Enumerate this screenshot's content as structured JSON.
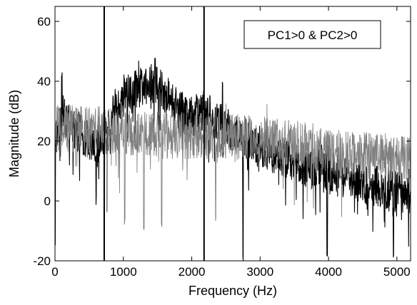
{
  "chart_data": {
    "type": "line",
    "xlabel": "Frequency (Hz)",
    "ylabel": "Magnitude (dB)",
    "xlim": [
      0,
      5200
    ],
    "ylim": [
      -20,
      65
    ],
    "xticks": [
      0,
      1000,
      2000,
      3000,
      4000,
      5000
    ],
    "yticks": [
      -20,
      0,
      20,
      40,
      60
    ],
    "xtick_labels": [
      "0",
      "1000",
      "2000",
      "3000",
      "4000",
      "5000"
    ],
    "ytick_labels": [
      "-20",
      "0",
      "20",
      "40",
      "60"
    ],
    "annotation": "PC1>0 & PC2>0",
    "vertical_lines": [
      720,
      2180
    ],
    "grid": false,
    "series": [
      {
        "color": "#000000",
        "envelope_x": [
          0,
          100,
          200,
          400,
          600,
          720,
          900,
          1100,
          1300,
          1450,
          1600,
          1800,
          2000,
          2180,
          2400,
          2700,
          3000,
          3300,
          3600,
          3900,
          4200,
          4500,
          4800,
          5200
        ],
        "envelope_mean": [
          20,
          30,
          26,
          22,
          18,
          20,
          32,
          36,
          38,
          40,
          36,
          30,
          28,
          30,
          26,
          22,
          18,
          15,
          12,
          10,
          8,
          6,
          4,
          2
        ],
        "spread": 7,
        "peaks": [
          {
            "x": 100,
            "y": 43
          },
          {
            "x": 1180,
            "y": 44
          },
          {
            "x": 1465,
            "y": 49
          },
          {
            "x": 2450,
            "y": 41
          }
        ],
        "dips": [
          {
            "x": 0,
            "y": -15
          },
          {
            "x": 2750,
            "y": -20
          },
          {
            "x": 3980,
            "y": -20
          },
          {
            "x": 4950,
            "y": -20
          }
        ]
      },
      {
        "color": "#808080",
        "envelope_x": [
          0,
          500,
          1000,
          1500,
          2000,
          2500,
          3000,
          3500,
          4000,
          4500,
          5200
        ],
        "envelope_mean": [
          24,
          24,
          23,
          22,
          22,
          22,
          21,
          19,
          17,
          15,
          14
        ],
        "spread": 8,
        "dips": [
          {
            "x": 760,
            "y": -5
          },
          {
            "x": 1020,
            "y": -8
          },
          {
            "x": 1300,
            "y": -10
          },
          {
            "x": 1560,
            "y": -9
          },
          {
            "x": 2350,
            "y": -7
          }
        ]
      }
    ]
  }
}
